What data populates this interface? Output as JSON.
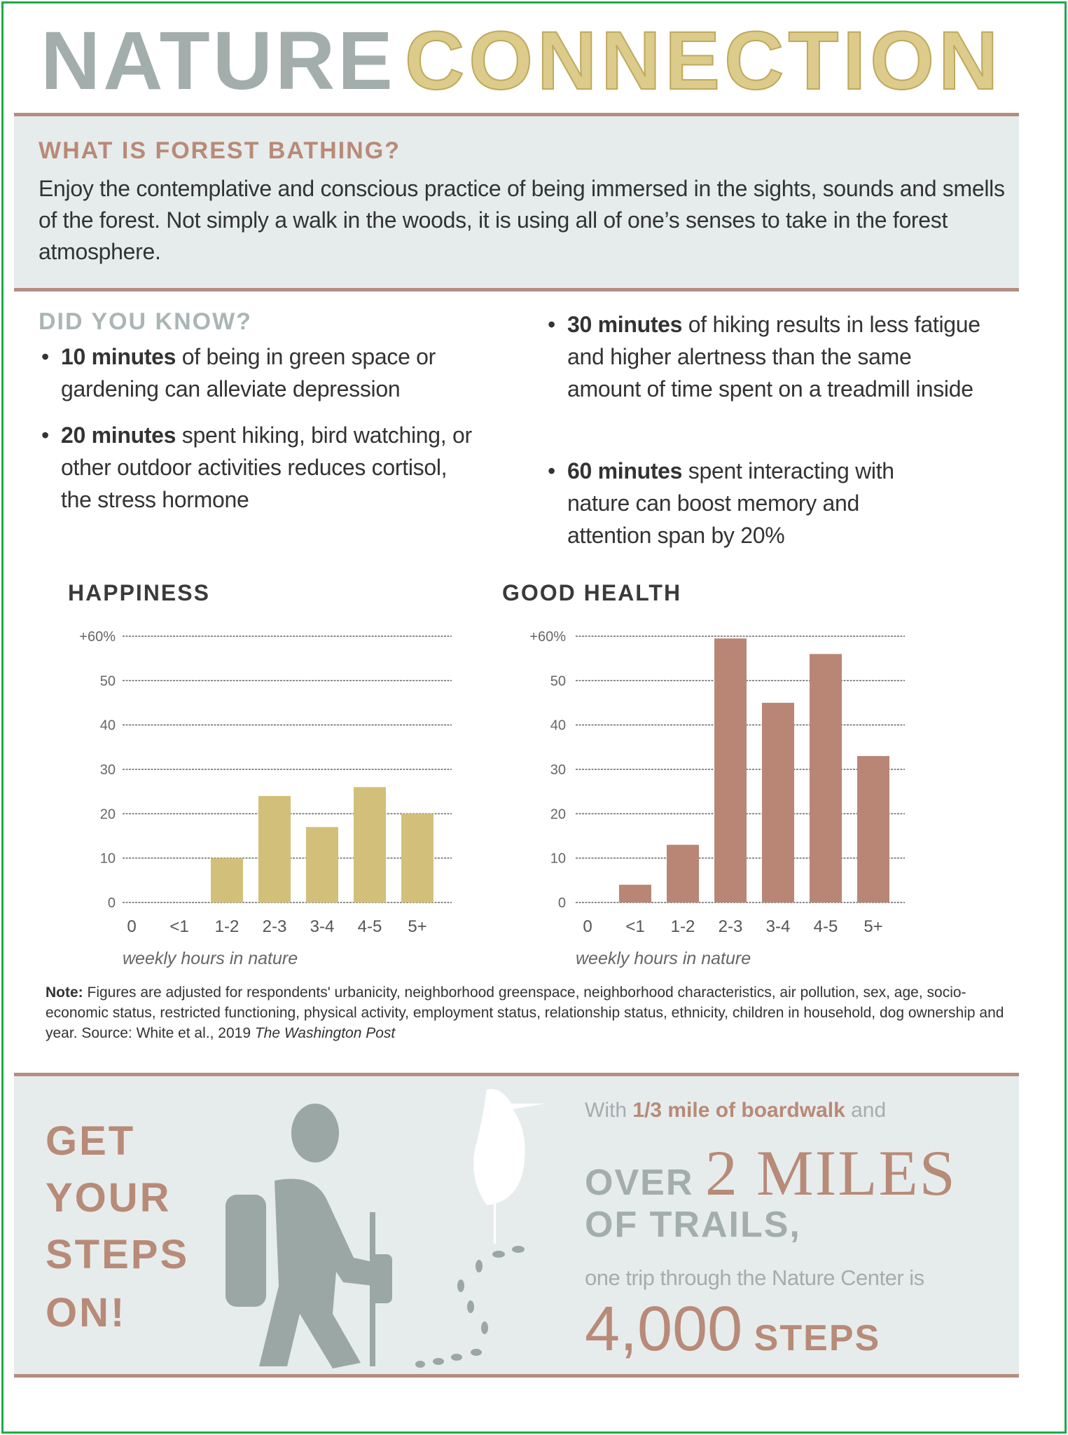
{
  "header": {
    "title_part1": "NATURE",
    "title_part2": "CONNECTION"
  },
  "forest_bathing": {
    "heading": "WHAT IS FOREST BATHING?",
    "text": "Enjoy the contemplative and conscious practice of being immersed in the sights, sounds and smells of the forest. Not simply a walk in the woods, it is using all of one’s senses to take in the forest atmosphere."
  },
  "did_you_know": {
    "heading": "DID YOU KNOW?",
    "facts": [
      {
        "bold": "10 minutes",
        "rest": " of being in green space or gardening can alleviate depression"
      },
      {
        "bold": "20 minutes",
        "rest": " spent hiking, bird watching, or other outdoor activities reduces cortisol, the stress hormone"
      },
      {
        "bold": "30 minutes",
        "rest": " of hiking results in less fatigue and higher alertness than the same amount of time spent on a treadmill inside"
      },
      {
        "bold": "60 minutes",
        "rest": " spent interacting with nature can boost memory and attention span by 20%"
      }
    ]
  },
  "chart_data": [
    {
      "type": "bar",
      "title": "HAPPINESS",
      "xlabel": "weekly hours in nature",
      "ylabel": "",
      "categories": [
        "0",
        "<1",
        "1-2",
        "2-3",
        "3-4",
        "4-5",
        "5+"
      ],
      "values": [
        0,
        0,
        10,
        24,
        17,
        26,
        20
      ],
      "yticks": [
        "0",
        "10",
        "20",
        "30",
        "40",
        "50",
        "+60%"
      ],
      "ylim": [
        0,
        60
      ],
      "grid": true,
      "color": "#d2c07a"
    },
    {
      "type": "bar",
      "title": "GOOD HEALTH",
      "xlabel": "weekly hours in nature",
      "ylabel": "",
      "categories": [
        "0",
        "<1",
        "1-2",
        "2-3",
        "3-4",
        "4-5",
        "5+"
      ],
      "values": [
        0,
        4,
        13,
        59.5,
        45,
        56,
        33
      ],
      "yticks": [
        "0",
        "10",
        "20",
        "30",
        "40",
        "50",
        "+60%"
      ],
      "ylim": [
        0,
        60
      ],
      "grid": true,
      "color": "#b98676"
    }
  ],
  "note": {
    "label": "Note:",
    "text": " Figures are adjusted for respondents' urbanicity, neighborhood greenspace, neighborhood characteristics, air pollution, sex, age, socio-economic status, restricted functioning, physical activity, employment status, relationship status, ethnicity, children in household, dog ownership and year. Source: White et al., 2019 ",
    "source": "The Washington Post"
  },
  "steps": {
    "lines": [
      "GET",
      "YOUR",
      "STEPS",
      "ON!"
    ],
    "with": "With ",
    "boardwalk": "1/3 mile of boardwalk",
    "and": " and",
    "over": "OVER ",
    "miles": "2 MILES",
    "trails": "OF TRAILS,",
    "trip": "one trip through the Nature Center is",
    "count": "4,000",
    "steps_word": " STEPS"
  },
  "colors": {
    "gray": "#a3aeac",
    "brown": "#b88a78",
    "gold": "#d2c07a",
    "band": "#e6ecec"
  },
  "icons": [
    "hiker-icon",
    "heron-icon",
    "footprints-icon"
  ]
}
